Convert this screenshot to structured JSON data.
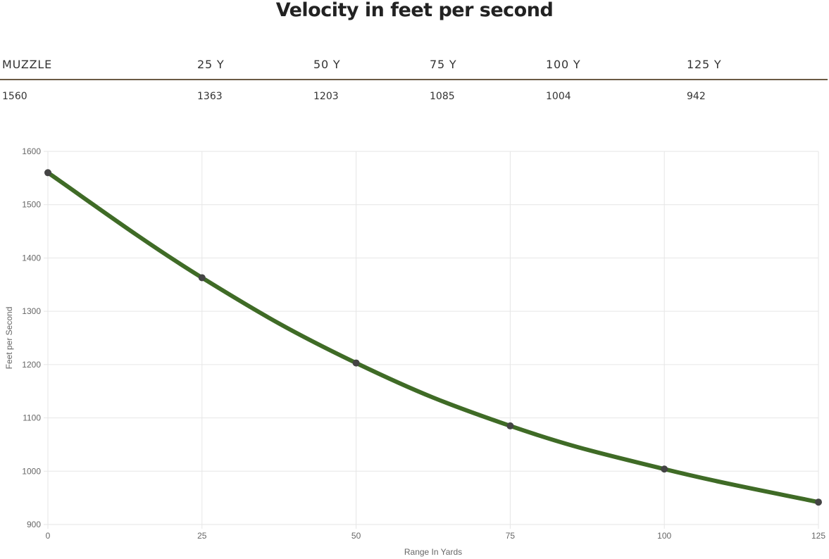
{
  "title": "Velocity in feet per second",
  "table": {
    "headers": [
      "MUZZLE",
      "25 Y",
      "50 Y",
      "75 Y",
      "100 Y",
      "125 Y"
    ],
    "values": [
      "1560",
      "1363",
      "1203",
      "1085",
      "1004",
      "942"
    ]
  },
  "colors": {
    "line": "#3f6b26",
    "point": "#444444",
    "grid": "#e6e6e6",
    "table_rule": "#6b5a44"
  },
  "chart_data": {
    "type": "line",
    "x": [
      0,
      25,
      50,
      75,
      100,
      125
    ],
    "series": [
      {
        "values": [
          1560,
          1363,
          1203,
          1085,
          1004,
          942
        ]
      }
    ],
    "xlabel": "Range In Yards",
    "ylabel": "Feet per Second",
    "xlim": [
      0,
      125
    ],
    "ylim": [
      900,
      1600
    ],
    "x_ticks": [
      "0",
      "25",
      "50",
      "75",
      "100",
      "125"
    ],
    "y_ticks": [
      "900",
      "1000",
      "1100",
      "1200",
      "1300",
      "1400",
      "1500",
      "1600"
    ],
    "grid": true,
    "legend": "none"
  }
}
